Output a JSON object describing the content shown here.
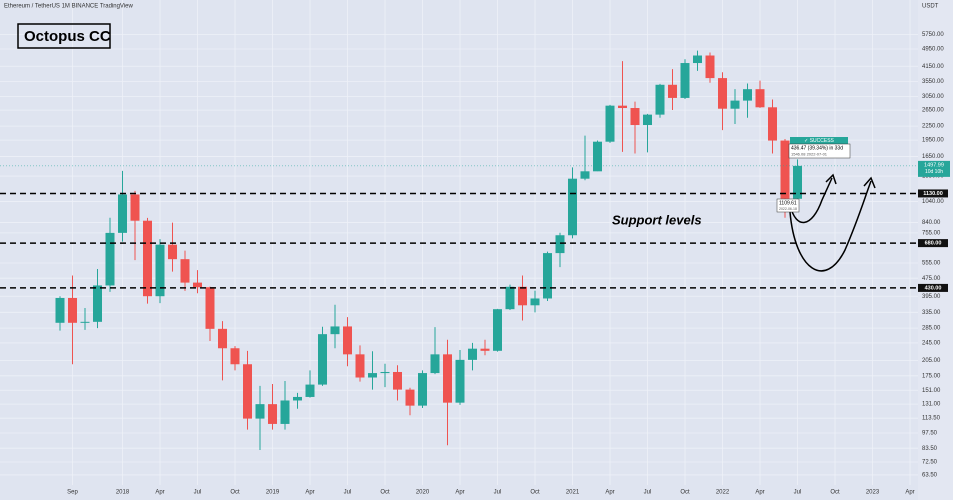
{
  "chart_data": {
    "type": "candlestick",
    "header": "Ethereum / TetherUS  1M  BINANCE  TradingView",
    "title": "Octopus CC",
    "annotation": "Support levels",
    "currency": "USDT",
    "log_scale": true,
    "grid": true,
    "up_color": "#26a69a",
    "down_color": "#ef5350",
    "categories": [
      null,
      "Sep",
      null,
      null,
      null,
      "2018",
      null,
      null,
      "Apr",
      null,
      null,
      "Jul",
      null,
      null,
      "Oct",
      null,
      null,
      "2019",
      null,
      null,
      "Apr",
      null,
      null,
      "Jul",
      null,
      null,
      "Oct",
      null,
      null,
      "2020",
      null,
      null,
      "Apr",
      null,
      null,
      "Jul",
      null,
      null,
      "Oct",
      null,
      null,
      "2021",
      null,
      null,
      "Apr",
      null,
      null,
      "Jul",
      null,
      null,
      "Oct",
      null,
      null,
      "2022",
      null,
      null,
      "Apr",
      null,
      null,
      "Jul",
      null,
      null,
      "Oct",
      null,
      null,
      "2023",
      null,
      null,
      "Apr",
      null,
      null
    ],
    "open": [
      301,
      388,
      301,
      304,
      441,
      755,
      1118,
      855,
      395,
      669,
      577,
      454,
      433,
      283,
      232,
      197,
      113,
      131,
      107,
      136,
      141,
      160,
      268,
      290,
      218,
      172,
      180,
      182,
      152,
      129,
      180,
      218,
      133,
      206,
      231,
      226,
      346,
      435,
      360,
      386,
      614,
      737,
      1314,
      1417,
      1918,
      2773,
      2707,
      2275,
      2530,
      3433,
      3001,
      4288,
      4631,
      3676,
      2688,
      2920,
      3282,
      2727,
      1941,
      1070,
      null,
      null,
      null,
      null,
      null,
      null,
      null,
      null,
      null,
      null,
      null
    ],
    "high": [
      395,
      488,
      350,
      522,
      881,
      1424,
      1160,
      880,
      708,
      838,
      630,
      516,
      436,
      306,
      237,
      226,
      158,
      161,
      166,
      147,
      185,
      289,
      362,
      319,
      239,
      225,
      198,
      195,
      155,
      185,
      288,
      253,
      228,
      245,
      253,
      347,
      445,
      488,
      418,
      623,
      756,
      1476,
      2042,
      1943,
      2797,
      4372,
      2891,
      2551,
      3466,
      4027,
      4460,
      4868,
      4778,
      3900,
      3282,
      3479,
      3580,
      2955,
      1971,
      1600,
      null,
      null,
      null,
      null,
      null,
      null,
      null,
      null,
      null,
      null,
      null
    ],
    "low": [
      278,
      197,
      280,
      285,
      413,
      690,
      571,
      366,
      368,
      508,
      417,
      407,
      250,
      167,
      185,
      101,
      82,
      101,
      101,
      125,
      140,
      158,
      232,
      193,
      165,
      152,
      156,
      136,
      117,
      126,
      178,
      86,
      130,
      185,
      216,
      224,
      343,
      308,
      335,
      376,
      532,
      714,
      1293,
      1420,
      1896,
      1728,
      1700,
      1719,
      2450,
      2652,
      2970,
      3958,
      3503,
      2159,
      2300,
      2450,
      2711,
      1700,
      881,
      1006,
      null,
      null,
      null,
      null,
      null,
      null,
      null,
      null,
      null,
      null,
      null
    ],
    "close": [
      388,
      301,
      304,
      441,
      755,
      1118,
      855,
      395,
      669,
      577,
      454,
      433,
      283,
      232,
      197,
      113,
      131,
      107,
      136,
      141,
      160,
      268,
      290,
      218,
      172,
      180,
      182,
      152,
      129,
      180,
      218,
      133,
      206,
      231,
      226,
      346,
      435,
      360,
      386,
      614,
      737,
      1314,
      1417,
      1918,
      2773,
      2707,
      2275,
      2530,
      3433,
      3001,
      4288,
      4631,
      3676,
      2688,
      2920,
      3282,
      2727,
      1941,
      1070,
      1497.99,
      null,
      null,
      null,
      null,
      null,
      null,
      null,
      null,
      null,
      null,
      null
    ],
    "ylim": [
      57.3,
      8170
    ],
    "yticks": [
      {
        "value": 5750,
        "label": "5750.00"
      },
      {
        "value": 4950,
        "label": "4950.00"
      },
      {
        "value": 4150,
        "label": "4150.00"
      },
      {
        "value": 3550,
        "label": "3550.00"
      },
      {
        "value": 3050,
        "label": "3050.00"
      },
      {
        "value": 2650,
        "label": "2650.00"
      },
      {
        "value": 2250,
        "label": "2250.00"
      },
      {
        "value": 1950,
        "label": "1950.00"
      },
      {
        "value": 1650,
        "label": "1650.00"
      },
      {
        "value": 1350,
        "label": "1350.00"
      },
      {
        "value": 1040,
        "label": "1040.00"
      },
      {
        "value": 840,
        "label": "840.00"
      },
      {
        "value": 755,
        "label": "755.00"
      },
      {
        "value": 555,
        "label": "555.00"
      },
      {
        "value": 475,
        "label": "475.00"
      },
      {
        "value": 395,
        "label": "395.00"
      },
      {
        "value": 335,
        "label": "335.00"
      },
      {
        "value": 285,
        "label": "285.00"
      },
      {
        "value": 245,
        "label": "245.00"
      },
      {
        "value": 205,
        "label": "205.00"
      },
      {
        "value": 175,
        "label": "175.00"
      },
      {
        "value": 151,
        "label": "151.00"
      },
      {
        "value": 131,
        "label": "131.00"
      },
      {
        "value": 113.5,
        "label": "113.50"
      },
      {
        "value": 97.5,
        "label": "97.50"
      },
      {
        "value": 83.5,
        "label": "83.50"
      },
      {
        "value": 72.5,
        "label": "72.50"
      },
      {
        "value": 63.5,
        "label": "63.50"
      }
    ],
    "levels": [
      {
        "value": 1130,
        "label": "1130.00"
      },
      {
        "value": 680,
        "label": "680.00"
      },
      {
        "value": 430,
        "label": "430.00"
      }
    ],
    "countdown": "10d 10h",
    "trade_status": "✓ SUCCESS",
    "trade_result": "436.47 (39.34%) in 33d",
    "trade_target": "1546.08   2022-07-01",
    "trade_low": "1109.61",
    "trade_low_date": "2022-06-18"
  }
}
